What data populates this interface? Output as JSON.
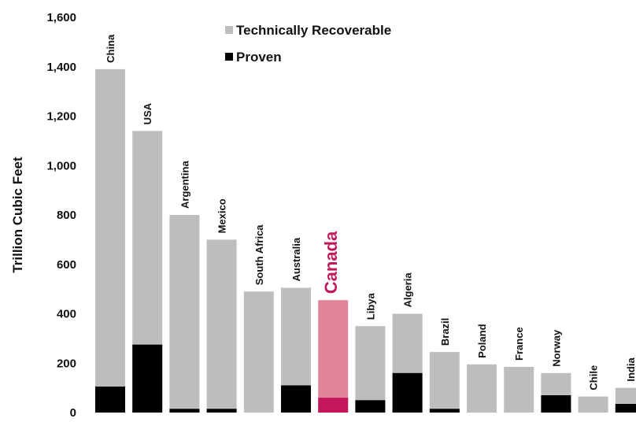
{
  "chart_data": {
    "type": "bar",
    "title": "",
    "xlabel": "",
    "ylabel": "Trillion Cubic Feet",
    "ylim": [
      0,
      1600
    ],
    "yticks": [
      "0",
      "200",
      "400",
      "600",
      "800",
      "1,000",
      "1,200",
      "1,400",
      "1,600"
    ],
    "grid": false,
    "legend_position": "top-center",
    "stacking": "overlay",
    "highlight_category": "Canada",
    "categories": [
      "China",
      "USA",
      "Argentina",
      "Mexico",
      "South Africa",
      "Australia",
      "Canada",
      "Libya",
      "Algeria",
      "Brazil",
      "Poland",
      "France",
      "Norway",
      "Chile",
      "India"
    ],
    "series": [
      {
        "name": "Technically Recoverable",
        "color": "#bdbdbd",
        "highlight_color": "#e0829a",
        "values": [
          1390,
          1140,
          800,
          700,
          490,
          505,
          455,
          350,
          400,
          245,
          195,
          185,
          160,
          65,
          100
        ]
      },
      {
        "name": "Proven",
        "color": "#000000",
        "highlight_color": "#c2185b",
        "values": [
          105,
          275,
          15,
          15,
          0,
          110,
          60,
          50,
          160,
          15,
          0,
          0,
          70,
          0,
          35
        ]
      }
    ]
  }
}
